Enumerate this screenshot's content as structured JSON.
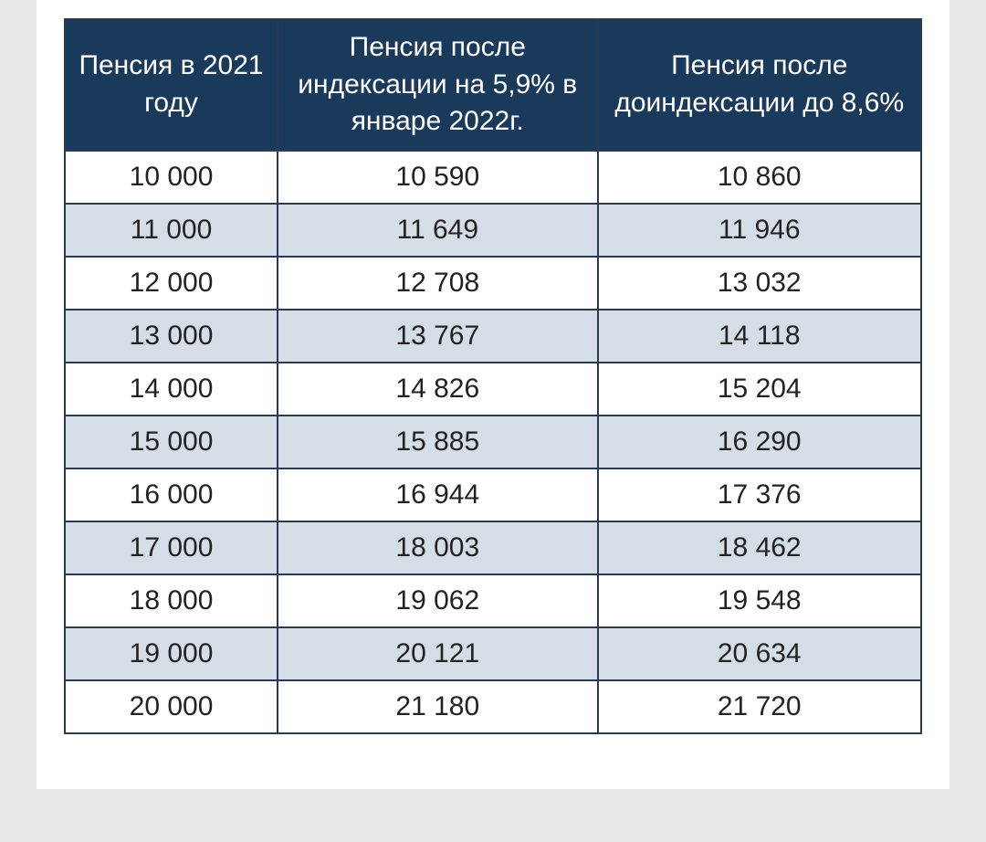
{
  "table": {
    "header_bg": "#1a3a5c",
    "header_text_color": "#ffffff",
    "border_color": "#2b3a52",
    "row_alt_bg": "#d5dde7",
    "row_bg": "#ffffff",
    "cell_text_color": "#222222",
    "font_size_header": 30,
    "font_size_cell": 30,
    "columns": [
      "Пенсия в 2021 году",
      "Пенсия после индексации на 5,9% в январе 2022г.",
      "Пенсия после доиндексации до 8,6%"
    ],
    "rows": [
      [
        "10 000",
        "10 590",
        "10 860"
      ],
      [
        "11 000",
        "11 649",
        "11 946"
      ],
      [
        "12 000",
        "12 708",
        "13 032"
      ],
      [
        "13 000",
        "13 767",
        "14 118"
      ],
      [
        "14 000",
        "14 826",
        "15 204"
      ],
      [
        "15 000",
        "15 885",
        "16 290"
      ],
      [
        "16 000",
        "16 944",
        "17 376"
      ],
      [
        "17 000",
        "18 003",
        "18 462"
      ],
      [
        "18 000",
        "19 062",
        "19 548"
      ],
      [
        "19 000",
        "20 121",
        "20 634"
      ],
      [
        "20 000",
        "21 180",
        "21 720"
      ]
    ]
  }
}
